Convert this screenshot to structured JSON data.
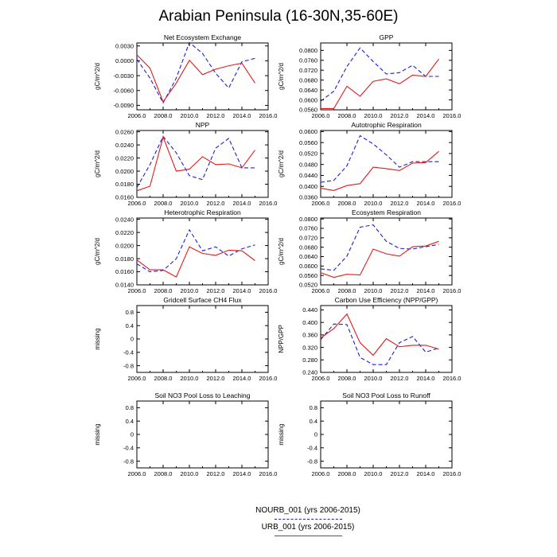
{
  "page": {
    "title": "Arabian Peninsula (16-30N,35-60E)"
  },
  "colors": {
    "nourb": "#1f1fcf",
    "urb": "#e31a1c",
    "axis": "#000000"
  },
  "legend": [
    {
      "label": "NOURB_001 (yrs 2006-2015)",
      "color": "#1f1fcf",
      "style": "dashed"
    },
    {
      "label": "URB_001 (yrs 2006-2015)",
      "color": "#e31a1c",
      "style": "solid"
    }
  ],
  "chart_data": [
    {
      "type": "line",
      "title": "Net Ecosystem Exchange",
      "ylabel": "gC/m^2/d",
      "xlim": [
        2006,
        2016
      ],
      "ylim": [
        -0.0099,
        0.0036
      ],
      "xticks": [
        2006,
        2008,
        2010,
        2012,
        2014,
        2016
      ],
      "xticklabels": [
        "2006.0",
        "2008.0",
        "2010.0",
        "2012.0",
        "2014.0",
        "2016.0"
      ],
      "yticks": [
        -0.009,
        -0.006,
        -0.003,
        0.0,
        0.003
      ],
      "yticklabels": [
        "-0.0090",
        "-0.0060",
        "-0.0030",
        "0.0000",
        "0.0030"
      ],
      "x": [
        2006,
        2007,
        2008,
        2009,
        2010,
        2011,
        2012,
        2013,
        2014,
        2015
      ],
      "series": [
        {
          "name": "NOURB_001",
          "style": "dashed",
          "color": "#1f1fcf",
          "values": [
            0.0003,
            -0.0035,
            -0.0085,
            -0.0035,
            0.0037,
            0.0015,
            -0.0025,
            -0.0055,
            -0.0002,
            0.0005
          ]
        },
        {
          "name": "URB_001",
          "style": "solid",
          "color": "#e31a1c",
          "values": [
            0.0012,
            -0.0015,
            -0.0083,
            -0.0045,
            0.0001,
            -0.0028,
            -0.0017,
            -0.001,
            -0.0005,
            -0.0045
          ]
        }
      ]
    },
    {
      "type": "line",
      "title": "GPP",
      "ylabel": "gC/m^2/d",
      "xlim": [
        2006,
        2016
      ],
      "ylim": [
        0.056,
        0.083
      ],
      "xticks": [
        2006,
        2008,
        2010,
        2012,
        2014,
        2016
      ],
      "xticklabels": [
        "2006.0",
        "2008.0",
        "2010.0",
        "2012.0",
        "2014.0",
        "2016.0"
      ],
      "yticks": [
        0.056,
        0.06,
        0.064,
        0.068,
        0.072,
        0.076,
        0.08
      ],
      "yticklabels": [
        "0.0560",
        "0.0600",
        "0.0640",
        "0.0680",
        "0.0720",
        "0.0760",
        "0.0800"
      ],
      "x": [
        2006,
        2007,
        2008,
        2009,
        2010,
        2011,
        2012,
        2013,
        2014,
        2015
      ],
      "series": [
        {
          "name": "NOURB_001",
          "style": "dashed",
          "color": "#1f1fcf",
          "values": [
            0.0595,
            0.0635,
            0.0735,
            0.081,
            0.0755,
            0.0705,
            0.071,
            0.074,
            0.0695,
            0.0695
          ]
        },
        {
          "name": "URB_001",
          "style": "solid",
          "color": "#e31a1c",
          "values": [
            0.0565,
            0.0565,
            0.0655,
            0.0615,
            0.0675,
            0.0685,
            0.0665,
            0.07,
            0.0695,
            0.0765
          ]
        }
      ]
    },
    {
      "type": "line",
      "title": "NPP",
      "ylabel": "gC/m^2/d",
      "xlim": [
        2006,
        2016
      ],
      "ylim": [
        0.016,
        0.0262
      ],
      "xticks": [
        2006,
        2008,
        2010,
        2012,
        2014,
        2016
      ],
      "xticklabels": [
        "2006.0",
        "2008.0",
        "2010.0",
        "2012.0",
        "2014.0",
        "2016.0"
      ],
      "yticks": [
        0.016,
        0.018,
        0.02,
        0.022,
        0.024,
        0.026
      ],
      "yticklabels": [
        "0.0160",
        "0.0180",
        "0.0200",
        "0.0220",
        "0.0240",
        "0.0260"
      ],
      "x": [
        2006,
        2007,
        2008,
        2009,
        2010,
        2011,
        2012,
        2013,
        2014,
        2015
      ],
      "series": [
        {
          "name": "NOURB_001",
          "style": "dashed",
          "color": "#1f1fcf",
          "values": [
            0.0175,
            0.021,
            0.0253,
            0.0228,
            0.0193,
            0.0187,
            0.0235,
            0.025,
            0.0205,
            0.0205
          ]
        },
        {
          "name": "URB_001",
          "style": "solid",
          "color": "#e31a1c",
          "values": [
            0.017,
            0.0177,
            0.0252,
            0.02,
            0.0203,
            0.0222,
            0.021,
            0.0211,
            0.0205,
            0.0232
          ]
        }
      ]
    },
    {
      "type": "line",
      "title": "Autotrophic Respiration",
      "ylabel": "gC/m^2/d",
      "xlim": [
        2006,
        2016
      ],
      "ylim": [
        0.036,
        0.0604
      ],
      "xticks": [
        2006,
        2008,
        2010,
        2012,
        2014,
        2016
      ],
      "xticklabels": [
        "2006.0",
        "2008.0",
        "2010.0",
        "2012.0",
        "2014.0",
        "2016.0"
      ],
      "yticks": [
        0.036,
        0.04,
        0.044,
        0.048,
        0.052,
        0.056,
        0.06
      ],
      "yticklabels": [
        "0.0360",
        "0.0400",
        "0.0440",
        "0.0480",
        "0.0520",
        "0.0560",
        "0.0600"
      ],
      "x": [
        2006,
        2007,
        2008,
        2009,
        2010,
        2011,
        2012,
        2013,
        2014,
        2015
      ],
      "series": [
        {
          "name": "NOURB_001",
          "style": "dashed",
          "color": "#1f1fcf",
          "values": [
            0.0415,
            0.0422,
            0.0475,
            0.0585,
            0.0555,
            0.0515,
            0.047,
            0.049,
            0.049,
            0.049
          ]
        },
        {
          "name": "URB_001",
          "style": "solid",
          "color": "#e31a1c",
          "values": [
            0.0393,
            0.0385,
            0.0403,
            0.041,
            0.047,
            0.0465,
            0.0458,
            0.0485,
            0.0487,
            0.0528
          ]
        }
      ]
    },
    {
      "type": "line",
      "title": "Heterotrophic Respiration",
      "ylabel": "gC/m^2/d",
      "xlim": [
        2006,
        2016
      ],
      "ylim": [
        0.014,
        0.0242
      ],
      "xticks": [
        2006,
        2008,
        2010,
        2012,
        2014,
        2016
      ],
      "xticklabels": [
        "2006.0",
        "2008.0",
        "2010.0",
        "2012.0",
        "2014.0",
        "2016.0"
      ],
      "yticks": [
        0.014,
        0.016,
        0.018,
        0.02,
        0.022,
        0.024
      ],
      "yticklabels": [
        "0.0140",
        "0.0160",
        "0.0180",
        "0.0200",
        "0.0220",
        "0.0240"
      ],
      "x": [
        2006,
        2007,
        2008,
        2009,
        2010,
        2011,
        2012,
        2013,
        2014,
        2015
      ],
      "series": [
        {
          "name": "NOURB_001",
          "style": "dashed",
          "color": "#1f1fcf",
          "values": [
            0.0172,
            0.016,
            0.0162,
            0.018,
            0.0224,
            0.0192,
            0.0198,
            0.0184,
            0.0195,
            0.0201
          ]
        },
        {
          "name": "URB_001",
          "style": "solid",
          "color": "#e31a1c",
          "values": [
            0.0178,
            0.0163,
            0.0163,
            0.0152,
            0.0198,
            0.0188,
            0.0185,
            0.0193,
            0.0192,
            0.0177
          ]
        }
      ]
    },
    {
      "type": "line",
      "title": "Ecosystem Respiration",
      "ylabel": "gC/m^2/d",
      "xlim": [
        2006,
        2016
      ],
      "ylim": [
        0.052,
        0.0804
      ],
      "xticks": [
        2006,
        2008,
        2010,
        2012,
        2014,
        2016
      ],
      "xticklabels": [
        "2006.0",
        "2008.0",
        "2010.0",
        "2012.0",
        "2014.0",
        "2016.0"
      ],
      "yticks": [
        0.052,
        0.056,
        0.06,
        0.064,
        0.068,
        0.072,
        0.076,
        0.08
      ],
      "yticklabels": [
        "0.0520",
        "0.0560",
        "0.0600",
        "0.0640",
        "0.0680",
        "0.0720",
        "0.0760",
        "0.0800"
      ],
      "x": [
        2006,
        2007,
        2008,
        2009,
        2010,
        2011,
        2012,
        2013,
        2014,
        2015
      ],
      "series": [
        {
          "name": "NOURB_001",
          "style": "dashed",
          "color": "#1f1fcf",
          "values": [
            0.0588,
            0.0582,
            0.0642,
            0.0765,
            0.0775,
            0.0705,
            0.0675,
            0.0672,
            0.0682,
            0.0692
          ]
        },
        {
          "name": "URB_001",
          "style": "solid",
          "color": "#e31a1c",
          "values": [
            0.0572,
            0.0552,
            0.0565,
            0.0562,
            0.0672,
            0.0652,
            0.0642,
            0.0682,
            0.0685,
            0.0705
          ]
        }
      ]
    },
    {
      "type": "line",
      "title": "Gridcell Surface CH4 Flux",
      "ylabel": "missing",
      "xlim": [
        2006,
        2016
      ],
      "ylim": [
        -1.0,
        1.0
      ],
      "xticks": [
        2006,
        2008,
        2010,
        2012,
        2014,
        2016
      ],
      "xticklabels": [
        "2006.0",
        "2008.0",
        "2010.0",
        "2012.0",
        "2014.0",
        "2016.0"
      ],
      "yticks": [
        -0.8,
        -0.4,
        0,
        0.4,
        0.8
      ],
      "yticklabels": [
        "-0.8",
        "-0.4",
        "0",
        "0.4",
        "0.8"
      ],
      "x": [],
      "series": []
    },
    {
      "type": "line",
      "title": "Carbon Use Efficiency (NPP/GPP)",
      "ylabel": "NPP/GPP",
      "xlim": [
        2006,
        2016
      ],
      "ylim": [
        0.24,
        0.454
      ],
      "xticks": [
        2006,
        2008,
        2010,
        2012,
        2014,
        2016
      ],
      "xticklabels": [
        "2006.0",
        "2008.0",
        "2010.0",
        "2012.0",
        "2014.0",
        "2016.0"
      ],
      "yticks": [
        0.24,
        0.28,
        0.32,
        0.36,
        0.4,
        0.44
      ],
      "yticklabels": [
        "0.240",
        "0.280",
        "0.320",
        "0.360",
        "0.400",
        "0.440"
      ],
      "x": [
        2006,
        2007,
        2008,
        2009,
        2010,
        2011,
        2012,
        2013,
        2014,
        2015
      ],
      "series": [
        {
          "name": "NOURB_001",
          "style": "dashed",
          "color": "#1f1fcf",
          "values": [
            0.345,
            0.395,
            0.393,
            0.288,
            0.265,
            0.265,
            0.335,
            0.355,
            0.305,
            0.318
          ]
        },
        {
          "name": "URB_001",
          "style": "solid",
          "color": "#e31a1c",
          "values": [
            0.35,
            0.38,
            0.427,
            0.335,
            0.295,
            0.348,
            0.322,
            0.327,
            0.327,
            0.315
          ]
        }
      ]
    },
    {
      "type": "line",
      "title": "Soil NO3 Pool Loss to Leaching",
      "ylabel": "missing",
      "xlim": [
        2006,
        2016
      ],
      "ylim": [
        -1.0,
        1.0
      ],
      "xticks": [
        2006,
        2008,
        2010,
        2012,
        2014,
        2016
      ],
      "xticklabels": [
        "2006.0",
        "2008.0",
        "2010.0",
        "2012.0",
        "2014.0",
        "2016.0"
      ],
      "yticks": [
        -0.8,
        -0.4,
        0,
        0.4,
        0.8
      ],
      "yticklabels": [
        "-0.8",
        "-0.4",
        "0",
        "0.4",
        "0.8"
      ],
      "x": [],
      "series": []
    },
    {
      "type": "line",
      "title": "Soil NO3 Pool Loss to Runoff",
      "ylabel": "missing",
      "xlim": [
        2006,
        2016
      ],
      "ylim": [
        -1.0,
        1.0
      ],
      "xticks": [
        2006,
        2008,
        2010,
        2012,
        2014,
        2016
      ],
      "xticklabels": [
        "2006.0",
        "2008.0",
        "2010.0",
        "2012.0",
        "2014.0",
        "2016.0"
      ],
      "yticks": [
        -0.8,
        -0.4,
        0,
        0.4,
        0.8
      ],
      "yticklabels": [
        "-0.8",
        "-0.4",
        "0",
        "0.4",
        "0.8"
      ],
      "x": [],
      "series": []
    }
  ]
}
